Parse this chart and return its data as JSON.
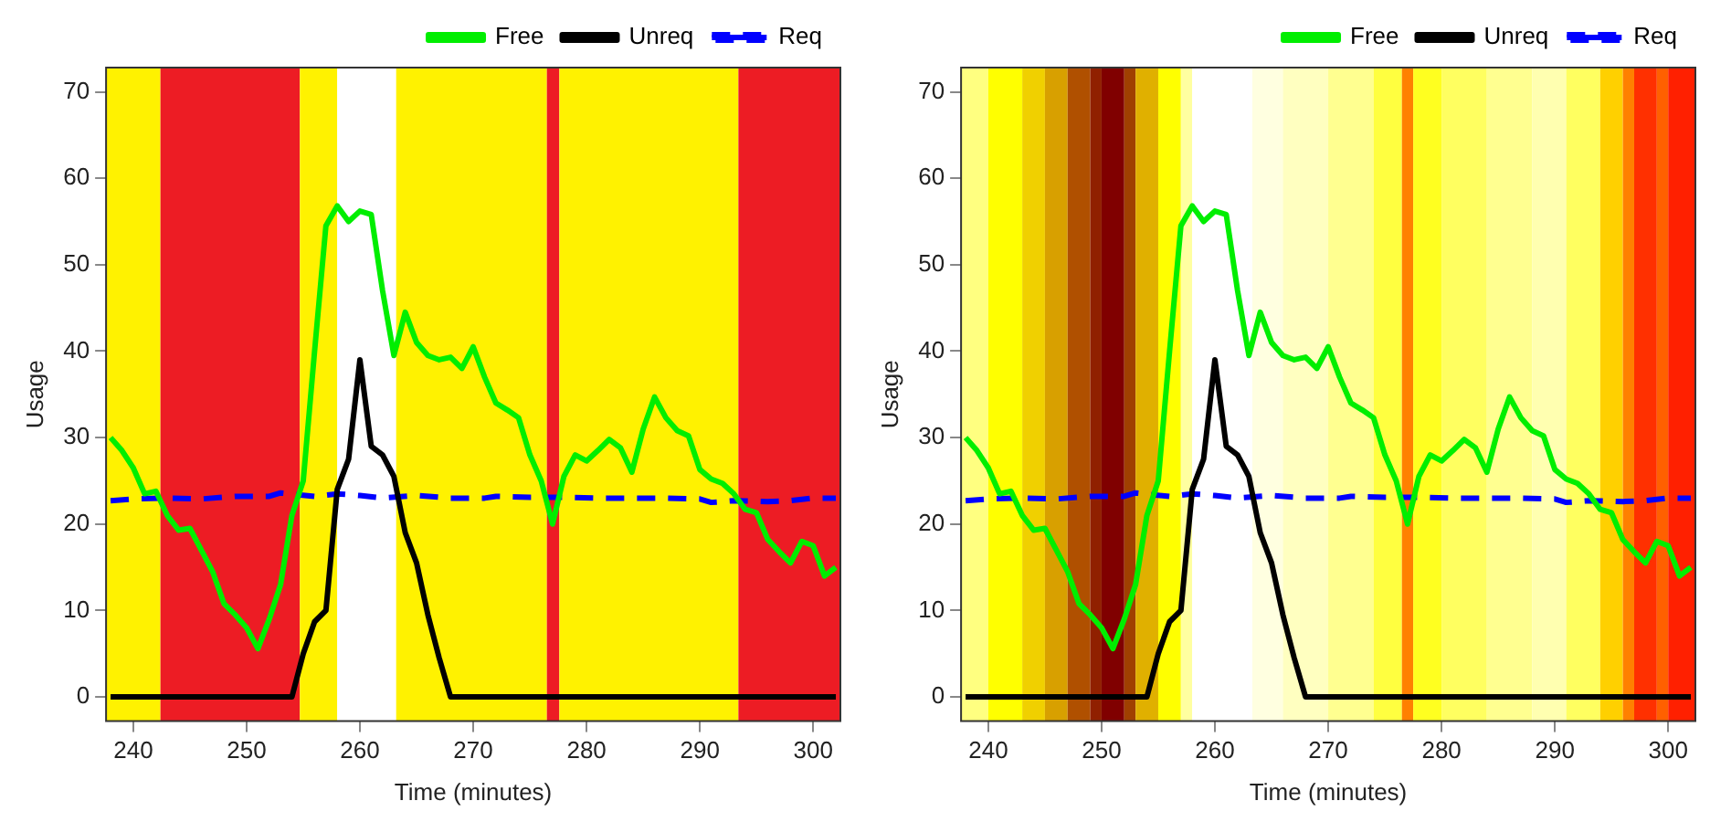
{
  "chart_data": [
    {
      "type": "line",
      "xlabel": "Time (minutes)",
      "ylabel": "Usage",
      "xlim": [
        237.6,
        302.4
      ],
      "xticks": [
        240,
        250,
        260,
        270,
        280,
        290,
        300
      ],
      "ylim": [
        -2.8,
        72.8
      ],
      "yticks": [
        0,
        10,
        20,
        30,
        40,
        50,
        60,
        70
      ],
      "grid": false,
      "legend": "top right",
      "marker": "none",
      "x": [
        238,
        239,
        240,
        241,
        242,
        243,
        244,
        245,
        246,
        247,
        248,
        249,
        250,
        251,
        252,
        253,
        254,
        255,
        256,
        257,
        258,
        259,
        260,
        261,
        262,
        263,
        264,
        265,
        266,
        267,
        268,
        269,
        270,
        271,
        272,
        273,
        274,
        275,
        276,
        277,
        278,
        279,
        280,
        281,
        282,
        283,
        284,
        285,
        286,
        287,
        288,
        289,
        290,
        291,
        292,
        293,
        294,
        295,
        296,
        297,
        298,
        299,
        300,
        301,
        302
      ],
      "series": [
        {
          "name": "Free",
          "color": "#00ee00",
          "values": [
            30,
            28.5,
            26.5,
            23.5,
            23.8,
            21,
            19.3,
            19.5,
            17,
            14.5,
            10.8,
            9.5,
            8,
            5.6,
            9,
            13,
            21,
            25,
            40,
            54.5,
            56.8,
            55,
            56.2,
            55.8,
            47,
            39.5,
            44.5,
            41,
            39.5,
            39,
            39.3,
            38,
            40.5,
            37,
            34,
            33.2,
            32.3,
            28,
            25,
            20,
            25.5,
            28,
            27.3,
            28.5,
            29.8,
            28.8,
            26,
            31,
            34.7,
            32.3,
            30.8,
            30.2,
            26.3,
            25.2,
            24.7,
            23.5,
            21.7,
            21.3,
            18.2,
            16.8,
            15.5,
            18,
            17.5,
            14,
            15
          ]
        },
        {
          "name": "Unreq",
          "color": "#000000",
          "values": [
            0,
            0,
            0,
            0,
            0,
            0,
            0,
            0,
            0,
            0,
            0,
            0,
            0,
            0,
            0,
            0,
            0,
            5,
            8.7,
            10,
            24,
            27.5,
            39,
            29,
            28,
            25.5,
            19,
            15.5,
            9.5,
            4.5,
            0,
            0,
            0,
            0,
            0,
            0,
            0,
            0,
            0,
            0,
            0,
            0,
            0,
            0,
            0,
            0,
            0,
            0,
            0,
            0,
            0,
            0,
            0,
            0,
            0,
            0,
            0,
            0,
            0,
            0,
            0,
            0,
            0,
            0,
            0
          ]
        },
        {
          "name": "Req",
          "color": "#0000ff",
          "line_style": "dashed",
          "x": [
            238,
            240,
            243,
            246,
            249,
            252,
            253,
            256,
            258,
            260,
            262,
            265,
            268,
            271,
            272,
            275,
            278,
            281,
            284,
            287,
            290,
            291,
            293,
            296,
            298,
            300,
            302
          ],
          "values": [
            22.7,
            22.9,
            23,
            22.9,
            23.2,
            23.2,
            23.6,
            23.2,
            23.5,
            23.3,
            23,
            23.3,
            23,
            23,
            23.2,
            23.1,
            23.1,
            23,
            23,
            23,
            22.9,
            22.5,
            22.7,
            22.6,
            22.7,
            23,
            23
          ]
        }
      ],
      "bands": [
        {
          "axis": "x",
          "from": 237.6,
          "to": 242.4,
          "color": "#fff200"
        },
        {
          "axis": "x",
          "from": 242.4,
          "to": 254.7,
          "color": "#ed1c24"
        },
        {
          "axis": "x",
          "from": 254.7,
          "to": 258,
          "color": "#fff200"
        },
        {
          "axis": "x",
          "from": 258,
          "to": 263.2,
          "color": "#ffffff"
        },
        {
          "axis": "x",
          "from": 263.2,
          "to": 276.5,
          "color": "#fff200"
        },
        {
          "axis": "x",
          "from": 276.5,
          "to": 277.6,
          "color": "#ed1c24"
        },
        {
          "axis": "x",
          "from": 277.6,
          "to": 293.4,
          "color": "#fff200"
        },
        {
          "axis": "x",
          "from": 293.4,
          "to": 302.4,
          "color": "#ed1c24"
        }
      ]
    },
    {
      "type": "line",
      "xlabel": "Time (minutes)",
      "ylabel": "Usage",
      "xlim": [
        237.6,
        302.4
      ],
      "xticks": [
        240,
        250,
        260,
        270,
        280,
        290,
        300
      ],
      "ylim": [
        -2.8,
        72.8
      ],
      "yticks": [
        0,
        10,
        20,
        30,
        40,
        50,
        60,
        70
      ],
      "grid": false,
      "legend": "top right",
      "marker": "none",
      "x": [
        238,
        239,
        240,
        241,
        242,
        243,
        244,
        245,
        246,
        247,
        248,
        249,
        250,
        251,
        252,
        253,
        254,
        255,
        256,
        257,
        258,
        259,
        260,
        261,
        262,
        263,
        264,
        265,
        266,
        267,
        268,
        269,
        270,
        271,
        272,
        273,
        274,
        275,
        276,
        277,
        278,
        279,
        280,
        281,
        282,
        283,
        284,
        285,
        286,
        287,
        288,
        289,
        290,
        291,
        292,
        293,
        294,
        295,
        296,
        297,
        298,
        299,
        300,
        301,
        302
      ],
      "series": [
        {
          "name": "Free",
          "color": "#00ee00",
          "values": [
            30,
            28.5,
            26.5,
            23.5,
            23.8,
            21,
            19.3,
            19.5,
            17,
            14.5,
            10.8,
            9.5,
            8,
            5.6,
            9,
            13,
            21,
            25,
            40,
            54.5,
            56.8,
            55,
            56.2,
            55.8,
            47,
            39.5,
            44.5,
            41,
            39.5,
            39,
            39.3,
            38,
            40.5,
            37,
            34,
            33.2,
            32.3,
            28,
            25,
            20,
            25.5,
            28,
            27.3,
            28.5,
            29.8,
            28.8,
            26,
            31,
            34.7,
            32.3,
            30.8,
            30.2,
            26.3,
            25.2,
            24.7,
            23.5,
            21.7,
            21.3,
            18.2,
            16.8,
            15.5,
            18,
            17.5,
            14,
            15
          ]
        },
        {
          "name": "Unreq",
          "color": "#000000",
          "values": [
            0,
            0,
            0,
            0,
            0,
            0,
            0,
            0,
            0,
            0,
            0,
            0,
            0,
            0,
            0,
            0,
            0,
            5,
            8.7,
            10,
            24,
            27.5,
            39,
            29,
            28,
            25.5,
            19,
            15.5,
            9.5,
            4.5,
            0,
            0,
            0,
            0,
            0,
            0,
            0,
            0,
            0,
            0,
            0,
            0,
            0,
            0,
            0,
            0,
            0,
            0,
            0,
            0,
            0,
            0,
            0,
            0,
            0,
            0,
            0,
            0,
            0,
            0,
            0,
            0,
            0,
            0,
            0
          ]
        },
        {
          "name": "Req",
          "color": "#0000ff",
          "line_style": "dashed",
          "x": [
            238,
            240,
            243,
            246,
            249,
            252,
            253,
            256,
            258,
            260,
            262,
            265,
            268,
            271,
            272,
            275,
            278,
            281,
            284,
            287,
            290,
            291,
            293,
            296,
            298,
            300,
            302
          ],
          "values": [
            22.7,
            22.9,
            23,
            22.9,
            23.2,
            23.2,
            23.6,
            23.2,
            23.5,
            23.3,
            23,
            23.3,
            23,
            23,
            23.2,
            23.1,
            23.1,
            23,
            23,
            23,
            22.9,
            22.5,
            22.7,
            22.6,
            22.7,
            23,
            23
          ]
        }
      ],
      "bands": [
        {
          "axis": "x",
          "from": 237.6,
          "to": 240,
          "color": "#ffff80"
        },
        {
          "axis": "x",
          "from": 240,
          "to": 243,
          "color": "#ffff00"
        },
        {
          "axis": "x",
          "from": 243,
          "to": 245,
          "color": "#f0d000"
        },
        {
          "axis": "x",
          "from": 245,
          "to": 247,
          "color": "#d8a000"
        },
        {
          "axis": "x",
          "from": 247,
          "to": 249,
          "color": "#b05000"
        },
        {
          "axis": "x",
          "from": 249,
          "to": 250,
          "color": "#902000"
        },
        {
          "axis": "x",
          "from": 250,
          "to": 252,
          "color": "#800000"
        },
        {
          "axis": "x",
          "from": 252,
          "to": 253,
          "color": "#a04000"
        },
        {
          "axis": "x",
          "from": 253,
          "to": 255,
          "color": "#e0b000"
        },
        {
          "axis": "x",
          "from": 255,
          "to": 257,
          "color": "#ffff00"
        },
        {
          "axis": "x",
          "from": 257,
          "to": 258,
          "color": "#ffffa0"
        },
        {
          "axis": "x",
          "from": 258,
          "to": 263.3,
          "color": "#ffffff"
        },
        {
          "axis": "x",
          "from": 263.3,
          "to": 266,
          "color": "#ffffe0"
        },
        {
          "axis": "x",
          "from": 266,
          "to": 270,
          "color": "#ffffc0"
        },
        {
          "axis": "x",
          "from": 270,
          "to": 274,
          "color": "#ffff90"
        },
        {
          "axis": "x",
          "from": 274,
          "to": 276.5,
          "color": "#ffff40"
        },
        {
          "axis": "x",
          "from": 276.5,
          "to": 277.5,
          "color": "#ff8000"
        },
        {
          "axis": "x",
          "from": 277.5,
          "to": 280,
          "color": "#ffff20"
        },
        {
          "axis": "x",
          "from": 280,
          "to": 284,
          "color": "#ffff60"
        },
        {
          "axis": "x",
          "from": 284,
          "to": 288,
          "color": "#ffff90"
        },
        {
          "axis": "x",
          "from": 288,
          "to": 291,
          "color": "#ffffb0"
        },
        {
          "axis": "x",
          "from": 291,
          "to": 294,
          "color": "#ffff60"
        },
        {
          "axis": "x",
          "from": 294,
          "to": 296,
          "color": "#ffd000"
        },
        {
          "axis": "x",
          "from": 296,
          "to": 297,
          "color": "#ff8000"
        },
        {
          "axis": "x",
          "from": 297,
          "to": 299,
          "color": "#ff3000"
        },
        {
          "axis": "x",
          "from": 299,
          "to": 300,
          "color": "#ff6000"
        },
        {
          "axis": "x",
          "from": 300,
          "to": 302.4,
          "color": "#ff2000"
        }
      ]
    }
  ]
}
